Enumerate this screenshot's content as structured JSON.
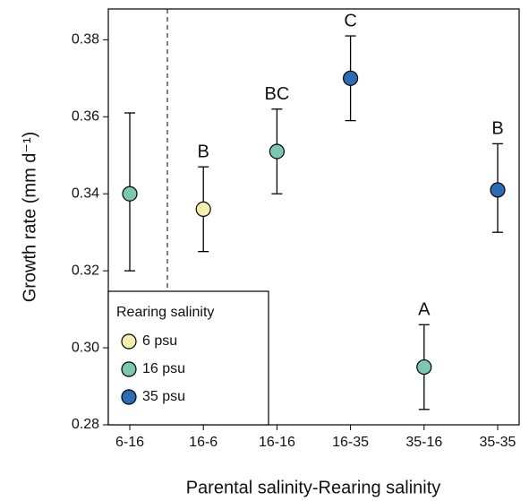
{
  "chart_data": {
    "type": "scatter",
    "x_label": "Parental salinity-Rearing salinity",
    "y_label": "Growth rate (mm d⁻¹)",
    "categories": [
      "6-16",
      "16-6",
      "16-16",
      "16-35",
      "35-16",
      "35-35"
    ],
    "annotations": [
      null,
      "B",
      "BC",
      "C",
      "A",
      "B"
    ],
    "series": [
      {
        "name": "6 psu",
        "color": "#f6eeb0",
        "values": [
          null,
          0.336,
          null,
          null,
          null,
          null
        ],
        "upper": [
          null,
          0.347,
          null,
          null,
          null,
          null
        ],
        "lower": [
          null,
          0.325,
          null,
          null,
          null,
          null
        ]
      },
      {
        "name": "16 psu",
        "color": "#7cc7b2",
        "values": [
          0.34,
          null,
          0.351,
          null,
          0.295,
          null
        ],
        "upper": [
          0.361,
          null,
          0.362,
          null,
          0.306,
          null
        ],
        "lower": [
          0.32,
          null,
          0.34,
          null,
          0.284,
          null
        ]
      },
      {
        "name": "35 psu",
        "color": "#2b6db5",
        "values": [
          null,
          null,
          null,
          0.37,
          null,
          0.341
        ],
        "upper": [
          null,
          null,
          null,
          0.381,
          null,
          0.353
        ],
        "lower": [
          null,
          null,
          null,
          0.359,
          null,
          0.33
        ]
      }
    ],
    "legend_title": "Rearing salinity",
    "legend_position": "lower left",
    "ylim": [
      0.28,
      0.388
    ],
    "yticks": [
      0.28,
      {
        "value": 0.3,
        "label": "0.30"
      },
      0.32,
      0.34,
      0.36,
      0.38
    ]
  }
}
